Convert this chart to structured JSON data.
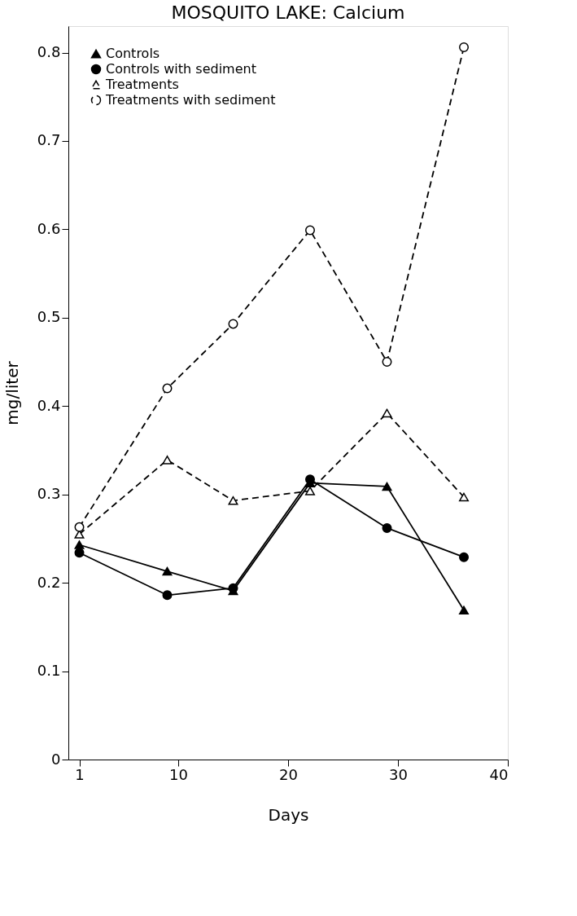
{
  "chart_data": {
    "type": "line",
    "title": "MOSQUITO LAKE: Calcium",
    "xlabel": "Days",
    "ylabel": "mg/liter",
    "x": [
      1,
      9,
      15,
      22,
      29,
      36
    ],
    "series": [
      {
        "name": "Controls",
        "color": "#000000",
        "marker": "triangle",
        "line_style": "solid",
        "values": [
          0.243,
          0.213,
          0.191,
          0.313,
          0.309,
          0.169
        ]
      },
      {
        "name": "Controls with sediment",
        "color": "#000000",
        "marker": "circle",
        "line_style": "solid",
        "values": [
          0.234,
          0.186,
          0.194,
          0.317,
          0.262,
          0.229
        ]
      },
      {
        "name": "Treatments",
        "color": "#000000",
        "marker": "triangle",
        "line_style": "dashed",
        "values": [
          0.255,
          0.339,
          0.293,
          0.304,
          0.392,
          0.297
        ]
      },
      {
        "name": "Treatments with sediment",
        "color": "#000000",
        "marker": "circle",
        "line_style": "dashed",
        "values": [
          0.263,
          0.42,
          0.493,
          0.599,
          0.45,
          0.806
        ]
      }
    ],
    "xlim": [
      0,
      40
    ],
    "xticks": [
      1,
      10,
      20,
      30,
      40
    ],
    "ylim": [
      0,
      0.83
    ],
    "yticks": [
      0,
      0.1,
      0.2,
      0.3,
      0.4,
      0.5,
      0.6,
      0.7,
      0.8
    ],
    "grid": false,
    "legend": "top left"
  }
}
